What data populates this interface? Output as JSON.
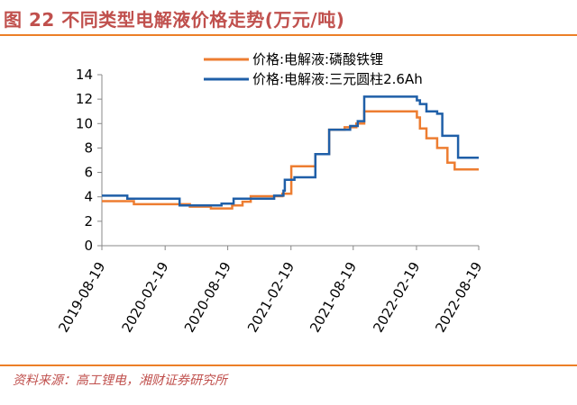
{
  "header": {
    "title": "图 22 不同类型电解液价格走势(万元/吨)"
  },
  "footer": {
    "source": "资料来源：高工锂电，湘财证券研究所"
  },
  "colors": {
    "accent": "#ec7f27",
    "title": "#c0504d",
    "series_lfp": "#ed7d31",
    "series_ncm": "#1f5fa8"
  },
  "chart_data": {
    "type": "line",
    "title": "",
    "xlabel": "",
    "ylabel": "",
    "ylim": [
      0,
      14
    ],
    "yticks": [
      0,
      2,
      4,
      6,
      8,
      10,
      12,
      14
    ],
    "xticks": [
      "2019-08-19",
      "2020-02-19",
      "2020-08-19",
      "2021-02-19",
      "2021-08-19",
      "2022-02-19",
      "2022-08-19"
    ],
    "xrange": [
      "2019-08-19",
      "2022-08-19"
    ],
    "legend": "top",
    "step": true,
    "series": [
      {
        "name": "价格:电解液:磷酸铁锂",
        "color": "#ed7d31",
        "points": [
          [
            "2019-08-19",
            3.65
          ],
          [
            "2019-11-20",
            3.4
          ],
          [
            "2020-05-01",
            3.2
          ],
          [
            "2020-07-01",
            3.05
          ],
          [
            "2020-09-01",
            3.3
          ],
          [
            "2020-10-01",
            3.6
          ],
          [
            "2020-10-25",
            4.05
          ],
          [
            "2021-01-25",
            4.25
          ],
          [
            "2021-02-20",
            6.5
          ],
          [
            "2021-05-01",
            7.5
          ],
          [
            "2021-06-10",
            9.5
          ],
          [
            "2021-07-25",
            9.7
          ],
          [
            "2021-08-28",
            10.0
          ],
          [
            "2021-09-20",
            11.0
          ],
          [
            "2022-02-20",
            10.5
          ],
          [
            "2022-03-01",
            9.6
          ],
          [
            "2022-03-20",
            8.8
          ],
          [
            "2022-04-20",
            8.0
          ],
          [
            "2022-05-20",
            6.8
          ],
          [
            "2022-06-10",
            6.25
          ],
          [
            "2022-08-19",
            6.25
          ]
        ]
      },
      {
        "name": "价格:电解液:三元圆柱2.6Ah",
        "color": "#1f5fa8",
        "points": [
          [
            "2019-08-19",
            4.1
          ],
          [
            "2019-11-01",
            3.85
          ],
          [
            "2020-04-01",
            3.3
          ],
          [
            "2020-08-01",
            3.45
          ],
          [
            "2020-09-05",
            3.85
          ],
          [
            "2021-01-01",
            4.1
          ],
          [
            "2021-01-28",
            4.5
          ],
          [
            "2021-02-01",
            5.4
          ],
          [
            "2021-03-01",
            5.6
          ],
          [
            "2021-05-01",
            7.5
          ],
          [
            "2021-06-10",
            9.5
          ],
          [
            "2021-08-10",
            9.8
          ],
          [
            "2021-09-01",
            10.2
          ],
          [
            "2021-09-20",
            12.2
          ],
          [
            "2022-02-20",
            11.9
          ],
          [
            "2022-03-01",
            11.6
          ],
          [
            "2022-03-20",
            11.0
          ],
          [
            "2022-04-20",
            10.8
          ],
          [
            "2022-05-05",
            9.0
          ],
          [
            "2022-06-20",
            7.2
          ],
          [
            "2022-08-19",
            7.2
          ]
        ]
      }
    ]
  }
}
